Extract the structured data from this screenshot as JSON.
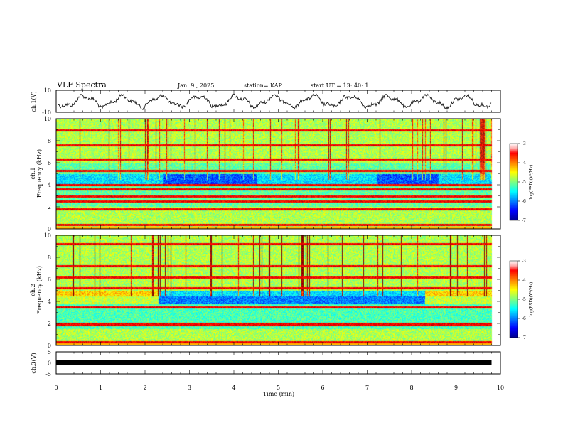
{
  "header": {
    "title": "VLF Spectra",
    "date": "Jan. 9 , 2025",
    "station": "station= KAP",
    "start": "start UT = 13: 40: 1"
  },
  "chart_data": [
    {
      "id": "ch1-waveform",
      "type": "line",
      "ylabel": "ch.1(V)",
      "ylim": [
        -10,
        10
      ],
      "yticks": [
        "10",
        "-10"
      ],
      "xlim": [
        0,
        10
      ],
      "color": "#000000"
    },
    {
      "id": "ch1-spectrogram",
      "type": "heatmap",
      "ylabel_top": "ch.1",
      "ylabel": "Frequency (kHz)",
      "ylim": [
        0,
        10
      ],
      "yticks": [
        "0",
        "2",
        "4",
        "6",
        "8",
        "10"
      ],
      "xlim": [
        0,
        10
      ],
      "data_end_min": 9.8,
      "hline_khz": [
        0.4,
        1.8,
        2.5,
        3.0,
        3.6,
        4.0,
        5.3,
        6.3,
        7.6,
        9.0
      ],
      "quiet_band_khz": [
        4.1,
        5.0
      ],
      "colorbar": {
        "label": "log(PSD)(V²/Hz)",
        "ticks": [
          "-3",
          "-4",
          "-5",
          "-6",
          "-7"
        ],
        "range": [
          -7,
          -3
        ]
      }
    },
    {
      "id": "ch2-spectrogram",
      "type": "heatmap",
      "ylabel_top": "ch.2",
      "ylabel": "Frequency (kHz)",
      "ylim": [
        0,
        10
      ],
      "yticks": [
        "0",
        "2",
        "4",
        "6",
        "8",
        "10"
      ],
      "xlim": [
        0,
        10
      ],
      "data_end_min": 9.8,
      "hline_khz": [
        0.3,
        1.9,
        2.0,
        3.5,
        5.2,
        6.2,
        7.2,
        9.2
      ],
      "quiet_band_khz": [
        3.8,
        5.0
      ],
      "colorbar": {
        "label": "log(PSD)(V²/Hz)",
        "ticks": [
          "-3",
          "-4",
          "-5",
          "-6",
          "-7"
        ],
        "range": [
          -7,
          -3
        ]
      }
    },
    {
      "id": "ch3-waveform",
      "type": "line",
      "ylabel": "ch.3(V)",
      "ylim": [
        -5,
        5
      ],
      "yticks": [
        "5",
        "0",
        "-5"
      ],
      "xlim": [
        0,
        10
      ],
      "xlabel": "Time (min)",
      "xticks": [
        "0",
        "1",
        "2",
        "3",
        "4",
        "5",
        "6",
        "7",
        "8",
        "9",
        "10"
      ],
      "data_end_min": 9.8,
      "color": "#000000"
    }
  ]
}
